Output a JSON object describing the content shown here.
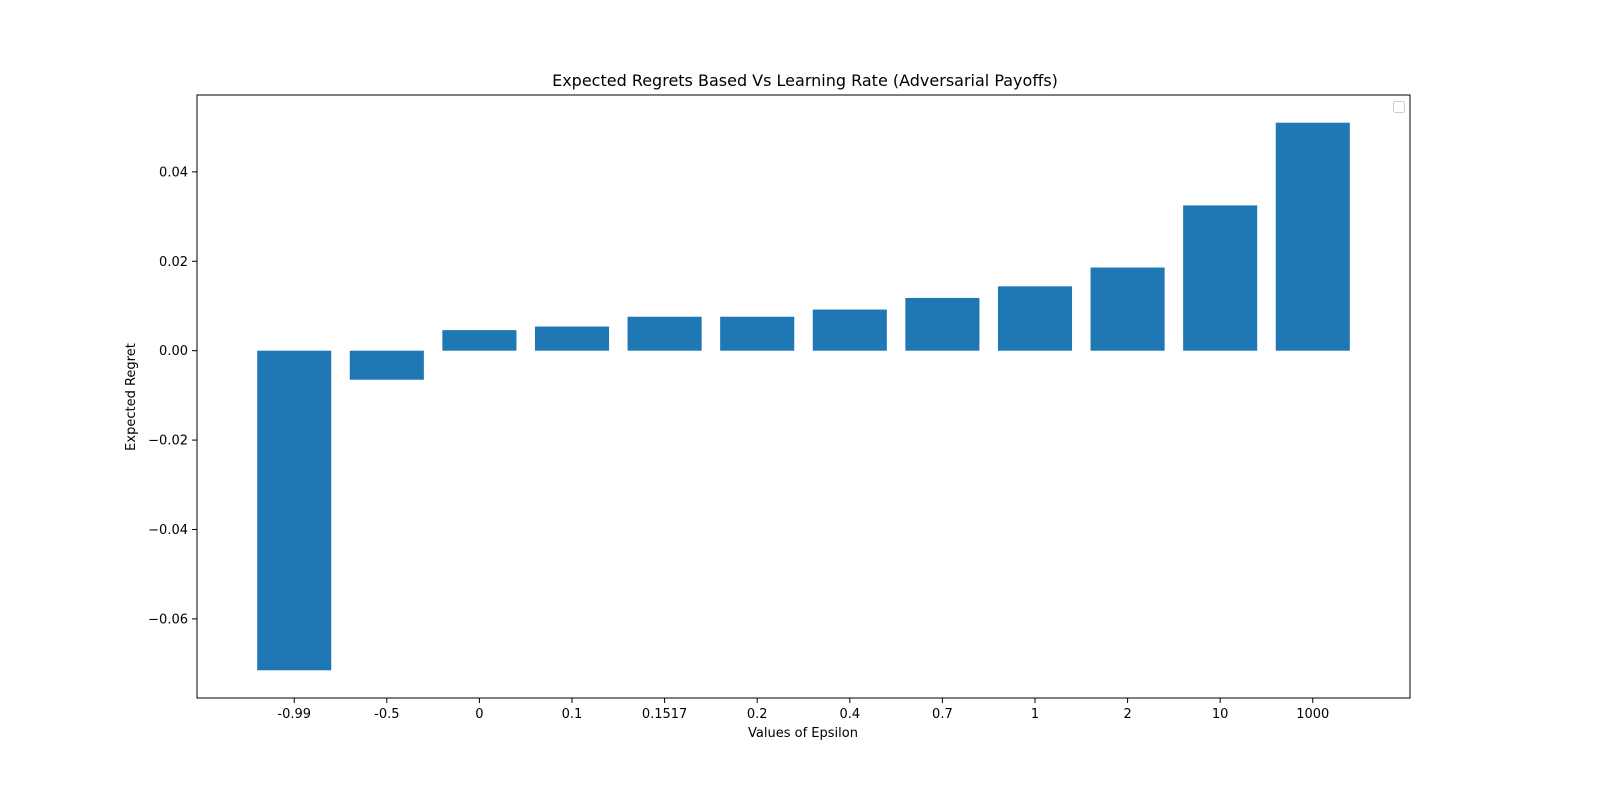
{
  "chart_data": {
    "type": "bar",
    "title": "Expected Regrets Based Vs Learning Rate (Adversarial Payoffs)",
    "xlabel": "Values of Epsilon",
    "ylabel": "Expected Regret",
    "categories": [
      "-0.99",
      "-0.5",
      "0",
      "0.1",
      "0.1517",
      "0.2",
      "0.4",
      "0.7",
      "1",
      "2",
      "10",
      "1000"
    ],
    "values": [
      -0.0715,
      -0.0065,
      0.0046,
      0.0054,
      0.0076,
      0.0076,
      0.0092,
      0.0118,
      0.0144,
      0.0186,
      0.0325,
      0.051
    ],
    "ylim": [
      -0.0777,
      0.0572
    ],
    "yticks": [
      -0.06,
      -0.04,
      -0.02,
      0.0,
      0.02,
      0.04
    ],
    "ytick_labels": [
      "−0.06",
      "−0.04",
      "−0.02",
      "0.00",
      "0.02",
      "0.04"
    ],
    "bar_color": "#1f77b4",
    "grid": false,
    "legend_placement": "top-right",
    "legend_entries": []
  }
}
